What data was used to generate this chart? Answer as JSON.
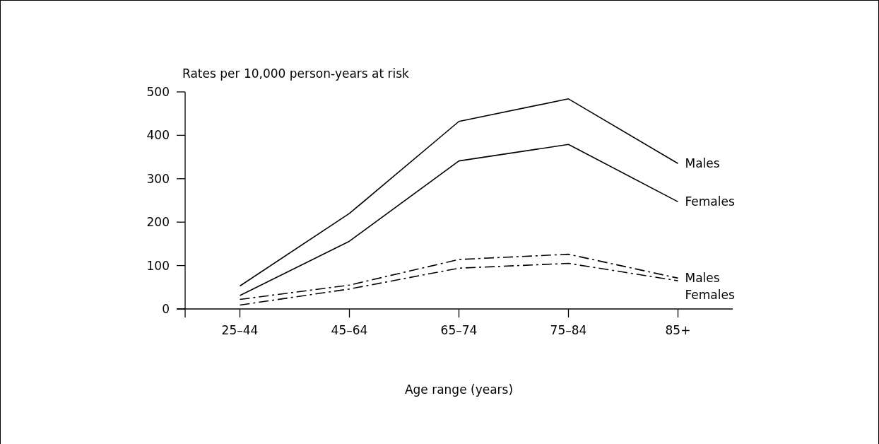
{
  "chart_data": {
    "type": "line",
    "xlabel": "Age range (years)",
    "ylabel": "Rates per 10,000 person-years at risk",
    "categories": [
      "25–44",
      "45–64",
      "65–74",
      "75–84",
      "85+"
    ],
    "series": [
      {
        "name": "Males",
        "color": "#000000",
        "line_style": "solid",
        "values": [
          53,
          220,
          432,
          484,
          335
        ]
      },
      {
        "name": "Females",
        "color": "#000000",
        "line_style": "solid",
        "values": [
          31,
          156,
          341,
          379,
          247
        ]
      },
      {
        "name": "Males",
        "color": "#000000",
        "line_style": "dashed",
        "values": [
          22,
          55,
          114,
          126,
          71
        ]
      },
      {
        "name": "Females",
        "color": "#000000",
        "line_style": "dashed",
        "values": [
          9,
          46,
          94,
          105,
          65
        ]
      }
    ],
    "ylim": [
      0,
      500
    ],
    "yticks": [
      0,
      100,
      200,
      300,
      400,
      500
    ],
    "grid": false,
    "legend": false,
    "marker": "none"
  }
}
